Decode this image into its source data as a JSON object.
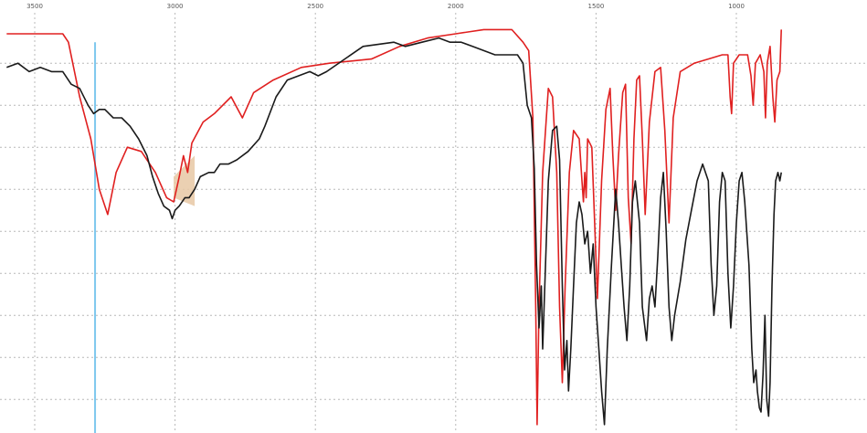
{
  "chart_data": {
    "type": "line",
    "title": "",
    "xlabel": "",
    "ylabel": "",
    "x_axis": {
      "reversed": true,
      "range": [
        3600,
        900
      ]
    },
    "y_range": [
      0,
      1
    ],
    "grid": true,
    "x_ticks": [
      {
        "value": 3500,
        "label": "3500"
      },
      {
        "value": 3000,
        "label": "3000"
      },
      {
        "value": 2500,
        "label": "2500"
      },
      {
        "value": 2000,
        "label": "2000"
      },
      {
        "value": 1500,
        "label": "1500"
      },
      {
        "value": 1000,
        "label": "1000"
      }
    ],
    "y_grid_values": [
      0.88,
      0.78,
      0.68,
      0.58,
      0.48,
      0.38,
      0.28,
      0.18,
      0.08
    ],
    "x_grid_values": [
      3500,
      3000,
      2500,
      2000,
      1500,
      1000
    ],
    "cursor_line": {
      "x": 3285,
      "color": "#7ec8ee"
    },
    "highlight_region": {
      "x_from": 3005,
      "x_to": 2930,
      "color": "#e8c8a4"
    },
    "series": [
      {
        "color": "#e02020",
        "points": [
          [
            3600,
            0.95
          ],
          [
            3400,
            0.95
          ],
          [
            3380,
            0.93
          ],
          [
            3340,
            0.8
          ],
          [
            3300,
            0.7
          ],
          [
            3270,
            0.58
          ],
          [
            3240,
            0.52
          ],
          [
            3210,
            0.62
          ],
          [
            3170,
            0.68
          ],
          [
            3120,
            0.67
          ],
          [
            3070,
            0.62
          ],
          [
            3030,
            0.56
          ],
          [
            3005,
            0.55
          ],
          [
            2985,
            0.61
          ],
          [
            2970,
            0.66
          ],
          [
            2955,
            0.62
          ],
          [
            2940,
            0.69
          ],
          [
            2900,
            0.74
          ],
          [
            2860,
            0.76
          ],
          [
            2800,
            0.8
          ],
          [
            2760,
            0.75
          ],
          [
            2720,
            0.81
          ],
          [
            2650,
            0.84
          ],
          [
            2550,
            0.87
          ],
          [
            2450,
            0.88
          ],
          [
            2300,
            0.89
          ],
          [
            2200,
            0.92
          ],
          [
            2100,
            0.94
          ],
          [
            2000,
            0.95
          ],
          [
            1900,
            0.96
          ],
          [
            1800,
            0.96
          ],
          [
            1760,
            0.93
          ],
          [
            1740,
            0.91
          ],
          [
            1725,
            0.75
          ],
          [
            1715,
            0.3
          ],
          [
            1710,
            0.02
          ],
          [
            1703,
            0.3
          ],
          [
            1690,
            0.62
          ],
          [
            1670,
            0.82
          ],
          [
            1655,
            0.8
          ],
          [
            1640,
            0.62
          ],
          [
            1630,
            0.3
          ],
          [
            1620,
            0.12
          ],
          [
            1610,
            0.35
          ],
          [
            1595,
            0.62
          ],
          [
            1580,
            0.72
          ],
          [
            1560,
            0.7
          ],
          [
            1550,
            0.6
          ],
          [
            1545,
            0.55
          ],
          [
            1540,
            0.62
          ],
          [
            1535,
            0.56
          ],
          [
            1530,
            0.7
          ],
          [
            1515,
            0.68
          ],
          [
            1505,
            0.5
          ],
          [
            1495,
            0.32
          ],
          [
            1480,
            0.6
          ],
          [
            1465,
            0.77
          ],
          [
            1450,
            0.82
          ],
          [
            1440,
            0.66
          ],
          [
            1430,
            0.53
          ],
          [
            1420,
            0.66
          ],
          [
            1405,
            0.81
          ],
          [
            1395,
            0.83
          ],
          [
            1385,
            0.56
          ],
          [
            1375,
            0.45
          ],
          [
            1365,
            0.7
          ],
          [
            1355,
            0.84
          ],
          [
            1345,
            0.85
          ],
          [
            1335,
            0.7
          ],
          [
            1325,
            0.52
          ],
          [
            1310,
            0.74
          ],
          [
            1290,
            0.86
          ],
          [
            1270,
            0.87
          ],
          [
            1255,
            0.72
          ],
          [
            1240,
            0.5
          ],
          [
            1225,
            0.75
          ],
          [
            1200,
            0.86
          ],
          [
            1150,
            0.88
          ],
          [
            1100,
            0.89
          ],
          [
            1050,
            0.9
          ],
          [
            1030,
            0.9
          ],
          [
            1022,
            0.8
          ],
          [
            1017,
            0.76
          ],
          [
            1010,
            0.88
          ],
          [
            990,
            0.9
          ],
          [
            960,
            0.9
          ],
          [
            948,
            0.85
          ],
          [
            940,
            0.78
          ],
          [
            932,
            0.88
          ],
          [
            915,
            0.9
          ],
          [
            902,
            0.86
          ],
          [
            896,
            0.75
          ],
          [
            890,
            0.88
          ],
          [
            880,
            0.92
          ],
          [
            870,
            0.8
          ],
          [
            863,
            0.74
          ],
          [
            855,
            0.84
          ],
          [
            845,
            0.86
          ],
          [
            840,
            0.96
          ]
        ]
      },
      {
        "color": "#1a1a1a",
        "points": [
          [
            3600,
            0.87
          ],
          [
            3560,
            0.88
          ],
          [
            3520,
            0.86
          ],
          [
            3480,
            0.87
          ],
          [
            3440,
            0.86
          ],
          [
            3400,
            0.86
          ],
          [
            3370,
            0.83
          ],
          [
            3340,
            0.82
          ],
          [
            3310,
            0.78
          ],
          [
            3290,
            0.76
          ],
          [
            3270,
            0.77
          ],
          [
            3250,
            0.77
          ],
          [
            3220,
            0.75
          ],
          [
            3190,
            0.75
          ],
          [
            3160,
            0.73
          ],
          [
            3130,
            0.7
          ],
          [
            3100,
            0.66
          ],
          [
            3080,
            0.61
          ],
          [
            3060,
            0.57
          ],
          [
            3040,
            0.54
          ],
          [
            3020,
            0.53
          ],
          [
            3010,
            0.51
          ],
          [
            3000,
            0.53
          ],
          [
            2985,
            0.54
          ],
          [
            2965,
            0.56
          ],
          [
            2950,
            0.56
          ],
          [
            2930,
            0.58
          ],
          [
            2910,
            0.61
          ],
          [
            2880,
            0.62
          ],
          [
            2860,
            0.62
          ],
          [
            2840,
            0.64
          ],
          [
            2810,
            0.64
          ],
          [
            2780,
            0.65
          ],
          [
            2740,
            0.67
          ],
          [
            2700,
            0.7
          ],
          [
            2680,
            0.73
          ],
          [
            2640,
            0.8
          ],
          [
            2600,
            0.84
          ],
          [
            2560,
            0.85
          ],
          [
            2520,
            0.86
          ],
          [
            2490,
            0.85
          ],
          [
            2460,
            0.86
          ],
          [
            2330,
            0.92
          ],
          [
            2220,
            0.93
          ],
          [
            2180,
            0.92
          ],
          [
            2120,
            0.93
          ],
          [
            2060,
            0.94
          ],
          [
            2020,
            0.93
          ],
          [
            1980,
            0.93
          ],
          [
            1940,
            0.92
          ],
          [
            1900,
            0.91
          ],
          [
            1860,
            0.9
          ],
          [
            1820,
            0.9
          ],
          [
            1780,
            0.9
          ],
          [
            1760,
            0.88
          ],
          [
            1745,
            0.78
          ],
          [
            1730,
            0.75
          ],
          [
            1720,
            0.63
          ],
          [
            1712,
            0.4
          ],
          [
            1703,
            0.25
          ],
          [
            1695,
            0.35
          ],
          [
            1690,
            0.2
          ],
          [
            1680,
            0.4
          ],
          [
            1670,
            0.6
          ],
          [
            1655,
            0.72
          ],
          [
            1640,
            0.73
          ],
          [
            1630,
            0.65
          ],
          [
            1620,
            0.35
          ],
          [
            1612,
            0.15
          ],
          [
            1604,
            0.22
          ],
          [
            1598,
            0.1
          ],
          [
            1590,
            0.2
          ],
          [
            1580,
            0.35
          ],
          [
            1570,
            0.5
          ],
          [
            1560,
            0.55
          ],
          [
            1550,
            0.52
          ],
          [
            1540,
            0.45
          ],
          [
            1530,
            0.48
          ],
          [
            1520,
            0.38
          ],
          [
            1510,
            0.45
          ],
          [
            1500,
            0.3
          ],
          [
            1490,
            0.2
          ],
          [
            1480,
            0.1
          ],
          [
            1470,
            0.02
          ],
          [
            1460,
            0.2
          ],
          [
            1445,
            0.4
          ],
          [
            1430,
            0.58
          ],
          [
            1420,
            0.5
          ],
          [
            1410,
            0.4
          ],
          [
            1400,
            0.3
          ],
          [
            1390,
            0.22
          ],
          [
            1380,
            0.35
          ],
          [
            1370,
            0.55
          ],
          [
            1360,
            0.6
          ],
          [
            1345,
            0.5
          ],
          [
            1335,
            0.3
          ],
          [
            1320,
            0.22
          ],
          [
            1310,
            0.32
          ],
          [
            1300,
            0.35
          ],
          [
            1290,
            0.3
          ],
          [
            1280,
            0.42
          ],
          [
            1270,
            0.56
          ],
          [
            1260,
            0.62
          ],
          [
            1250,
            0.48
          ],
          [
            1240,
            0.3
          ],
          [
            1230,
            0.22
          ],
          [
            1220,
            0.28
          ],
          [
            1200,
            0.36
          ],
          [
            1180,
            0.46
          ],
          [
            1160,
            0.53
          ],
          [
            1140,
            0.6
          ],
          [
            1120,
            0.64
          ],
          [
            1100,
            0.6
          ],
          [
            1090,
            0.4
          ],
          [
            1080,
            0.28
          ],
          [
            1070,
            0.35
          ],
          [
            1060,
            0.55
          ],
          [
            1050,
            0.62
          ],
          [
            1040,
            0.6
          ],
          [
            1030,
            0.38
          ],
          [
            1020,
            0.25
          ],
          [
            1010,
            0.35
          ],
          [
            1000,
            0.5
          ],
          [
            990,
            0.6
          ],
          [
            980,
            0.62
          ],
          [
            970,
            0.55
          ],
          [
            955,
            0.4
          ],
          [
            945,
            0.2
          ],
          [
            938,
            0.12
          ],
          [
            930,
            0.15
          ],
          [
            925,
            0.1
          ],
          [
            918,
            0.06
          ],
          [
            912,
            0.05
          ],
          [
            905,
            0.14
          ],
          [
            898,
            0.28
          ],
          [
            892,
            0.08
          ],
          [
            885,
            0.04
          ],
          [
            880,
            0.12
          ],
          [
            873,
            0.35
          ],
          [
            866,
            0.52
          ],
          [
            860,
            0.6
          ],
          [
            852,
            0.62
          ],
          [
            845,
            0.6
          ],
          [
            840,
            0.62
          ]
        ]
      }
    ]
  }
}
